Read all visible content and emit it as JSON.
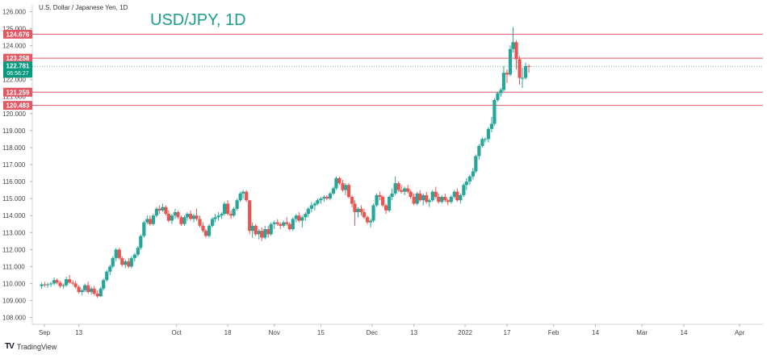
{
  "chart_data": {
    "type": "candlestick",
    "symbol_label": "U.S. Dollar / Japanese Yen, 1D",
    "title": "USD/JPY, 1D",
    "ylim": [
      107.6,
      126.4
    ],
    "y_ticks": [
      "126.000",
      "125.000",
      "124.000",
      "123.000",
      "122.000",
      "121.000",
      "120.000",
      "119.000",
      "118.000",
      "117.000",
      "116.000",
      "115.000",
      "114.000",
      "113.000",
      "112.000",
      "111.000",
      "110.000",
      "109.000",
      "108.000"
    ],
    "x_ticks": [
      {
        "label": "Sep",
        "x": 0.06
      },
      {
        "label": "13",
        "x": 0.8
      },
      {
        "label": "Oct",
        "x": 2.9
      },
      {
        "label": "18",
        "x": 4.0
      },
      {
        "label": "Nov",
        "x": 5.0
      },
      {
        "label": "15",
        "x": 6.0
      },
      {
        "label": "Dec",
        "x": 7.1
      },
      {
        "label": "13",
        "x": 8.0
      },
      {
        "label": "2022",
        "x": 9.1
      },
      {
        "label": "17",
        "x": 10.0
      },
      {
        "label": "Feb",
        "x": 11.0
      },
      {
        "label": "14",
        "x": 11.9
      },
      {
        "label": "Mar",
        "x": 12.9
      },
      {
        "label": "14",
        "x": 13.8
      },
      {
        "label": "Apr",
        "x": 15.0
      }
    ],
    "levels": [
      {
        "value": "124.676",
        "color": "#e05a66"
      },
      {
        "value": "123.258",
        "color": "#e05a66"
      },
      {
        "value": "121.259",
        "color": "#e05a66"
      },
      {
        "value": "120.483",
        "color": "#e05a66"
      }
    ],
    "current_price": {
      "value": "122.781",
      "countdown": "06:56:27",
      "color": "#089981"
    },
    "up_color": "#26a69a",
    "down_color": "#ef5350",
    "x_range": [
      -0.2,
      15.5
    ],
    "candles": [
      [
        0.0,
        109.85,
        110.05,
        109.7,
        109.95
      ],
      [
        0.07,
        109.95,
        110.1,
        109.8,
        109.9
      ],
      [
        0.13,
        109.9,
        110.05,
        109.75,
        109.95
      ],
      [
        0.2,
        109.95,
        110.1,
        109.8,
        110.0
      ],
      [
        0.27,
        110.0,
        110.35,
        109.9,
        110.2
      ],
      [
        0.33,
        110.2,
        110.3,
        109.95,
        110.05
      ],
      [
        0.4,
        110.05,
        110.15,
        109.75,
        109.85
      ],
      [
        0.47,
        109.85,
        110.0,
        109.7,
        109.9
      ],
      [
        0.53,
        109.9,
        110.4,
        109.8,
        110.25
      ],
      [
        0.6,
        110.25,
        110.5,
        110.0,
        110.05
      ],
      [
        0.67,
        110.05,
        110.2,
        109.9,
        110.0
      ],
      [
        0.73,
        110.0,
        110.15,
        109.7,
        109.8
      ],
      [
        0.8,
        109.8,
        109.9,
        109.4,
        109.5
      ],
      [
        0.87,
        109.5,
        109.7,
        109.3,
        109.6
      ],
      [
        0.93,
        109.6,
        110.0,
        109.5,
        109.9
      ],
      [
        1.0,
        109.9,
        110.1,
        109.4,
        109.5
      ],
      [
        1.07,
        109.5,
        109.8,
        109.35,
        109.7
      ],
      [
        1.13,
        109.7,
        109.85,
        109.3,
        109.4
      ],
      [
        1.2,
        109.4,
        109.6,
        109.15,
        109.25
      ],
      [
        1.27,
        109.25,
        109.8,
        109.2,
        109.7
      ],
      [
        1.33,
        109.7,
        110.3,
        109.6,
        110.2
      ],
      [
        1.4,
        110.2,
        110.8,
        110.1,
        110.7
      ],
      [
        1.47,
        110.7,
        111.1,
        110.5,
        111.0
      ],
      [
        1.53,
        111.0,
        111.6,
        110.9,
        111.5
      ],
      [
        1.6,
        111.5,
        112.1,
        111.3,
        112.0
      ],
      [
        1.67,
        112.0,
        112.1,
        111.4,
        111.5
      ],
      [
        1.73,
        111.5,
        111.6,
        111.0,
        111.1
      ],
      [
        1.8,
        111.1,
        111.4,
        110.9,
        111.3
      ],
      [
        1.87,
        111.3,
        111.5,
        110.9,
        111.0
      ],
      [
        1.93,
        111.0,
        111.6,
        110.9,
        111.5
      ],
      [
        2.0,
        111.5,
        111.8,
        111.3,
        111.7
      ],
      [
        2.07,
        111.7,
        112.2,
        111.6,
        112.1
      ],
      [
        2.13,
        112.1,
        112.9,
        112.0,
        112.8
      ],
      [
        2.2,
        112.8,
        113.7,
        112.7,
        113.6
      ],
      [
        2.27,
        113.6,
        114.0,
        113.5,
        113.8
      ],
      [
        2.33,
        113.8,
        114.0,
        113.4,
        113.5
      ],
      [
        2.4,
        113.5,
        114.1,
        113.4,
        114.0
      ],
      [
        2.47,
        114.0,
        114.5,
        113.9,
        114.4
      ],
      [
        2.53,
        114.4,
        114.6,
        114.1,
        114.3
      ],
      [
        2.6,
        114.3,
        114.7,
        114.2,
        114.5
      ],
      [
        2.67,
        114.5,
        114.6,
        114.0,
        114.1
      ],
      [
        2.73,
        114.1,
        114.3,
        113.6,
        113.7
      ],
      [
        2.8,
        113.7,
        114.1,
        113.5,
        114.0
      ],
      [
        2.87,
        114.0,
        114.4,
        113.8,
        114.2
      ],
      [
        2.93,
        114.2,
        114.3,
        113.8,
        113.9
      ],
      [
        3.0,
        113.9,
        114.0,
        113.4,
        113.5
      ],
      [
        3.07,
        113.5,
        114.0,
        113.4,
        113.9
      ],
      [
        3.13,
        113.9,
        114.2,
        113.7,
        114.1
      ],
      [
        3.2,
        114.1,
        114.3,
        113.7,
        113.8
      ],
      [
        3.27,
        113.8,
        114.1,
        113.6,
        114.0
      ],
      [
        3.33,
        114.0,
        114.4,
        113.7,
        113.8
      ],
      [
        3.4,
        113.8,
        114.0,
        113.3,
        113.4
      ],
      [
        3.47,
        113.4,
        113.6,
        113.0,
        113.1
      ],
      [
        3.53,
        113.1,
        113.2,
        112.7,
        112.8
      ],
      [
        3.6,
        112.8,
        113.5,
        112.7,
        113.4
      ],
      [
        3.67,
        113.4,
        113.9,
        113.3,
        113.8
      ],
      [
        3.73,
        113.8,
        114.1,
        113.6,
        113.9
      ],
      [
        3.8,
        113.9,
        114.2,
        113.7,
        114.0
      ],
      [
        3.87,
        114.0,
        114.2,
        113.8,
        114.1
      ],
      [
        3.93,
        114.1,
        114.8,
        114.0,
        114.7
      ],
      [
        4.0,
        114.7,
        114.9,
        114.0,
        114.1
      ],
      [
        4.07,
        114.1,
        114.3,
        113.8,
        114.0
      ],
      [
        4.13,
        114.0,
        114.5,
        113.9,
        114.4
      ],
      [
        4.2,
        114.4,
        115.0,
        114.3,
        114.9
      ],
      [
        4.27,
        114.9,
        115.4,
        114.8,
        115.3
      ],
      [
        4.33,
        115.3,
        115.5,
        115.0,
        115.4
      ],
      [
        4.4,
        115.4,
        115.5,
        114.8,
        114.9
      ],
      [
        4.47,
        114.9,
        114.9,
        112.9,
        113.1
      ],
      [
        4.53,
        113.1,
        113.6,
        112.7,
        113.4
      ],
      [
        4.6,
        113.4,
        113.5,
        112.8,
        112.9
      ],
      [
        4.67,
        112.9,
        113.2,
        112.6,
        113.1
      ],
      [
        4.73,
        113.1,
        113.3,
        112.5,
        112.7
      ],
      [
        4.8,
        112.7,
        113.4,
        112.6,
        113.2
      ],
      [
        4.87,
        113.2,
        113.4,
        112.7,
        112.9
      ],
      [
        4.93,
        112.9,
        113.6,
        112.8,
        113.5
      ],
      [
        5.0,
        113.5,
        113.7,
        113.2,
        113.6
      ],
      [
        5.07,
        113.6,
        113.8,
        113.4,
        113.5
      ],
      [
        5.13,
        113.5,
        113.6,
        113.2,
        113.4
      ],
      [
        5.2,
        113.4,
        113.7,
        113.3,
        113.6
      ],
      [
        5.27,
        113.6,
        113.9,
        113.4,
        113.5
      ],
      [
        5.33,
        113.5,
        113.6,
        113.1,
        113.2
      ],
      [
        5.4,
        113.2,
        113.9,
        113.1,
        113.8
      ],
      [
        5.47,
        113.8,
        114.1,
        113.6,
        114.0
      ],
      [
        5.53,
        114.0,
        114.2,
        113.6,
        113.7
      ],
      [
        5.6,
        113.7,
        114.0,
        113.3,
        113.9
      ],
      [
        5.67,
        113.9,
        114.2,
        113.7,
        114.1
      ],
      [
        5.73,
        114.1,
        114.5,
        113.9,
        114.4
      ],
      [
        5.8,
        114.4,
        114.8,
        114.2,
        114.6
      ],
      [
        5.87,
        114.6,
        114.8,
        114.3,
        114.7
      ],
      [
        5.93,
        114.7,
        115.0,
        114.6,
        114.9
      ],
      [
        6.0,
        114.9,
        115.1,
        114.7,
        115.0
      ],
      [
        6.07,
        115.0,
        115.2,
        114.8,
        115.1
      ],
      [
        6.13,
        115.1,
        115.2,
        114.9,
        115.0
      ],
      [
        6.2,
        115.0,
        115.4,
        114.9,
        115.3
      ],
      [
        6.27,
        115.3,
        115.7,
        115.2,
        115.6
      ],
      [
        6.33,
        115.6,
        116.3,
        115.5,
        116.2
      ],
      [
        6.4,
        116.2,
        116.3,
        115.8,
        115.9
      ],
      [
        6.47,
        115.9,
        116.1,
        115.4,
        115.5
      ],
      [
        6.53,
        115.5,
        115.9,
        115.2,
        115.8
      ],
      [
        6.6,
        115.8,
        115.9,
        115.0,
        115.1
      ],
      [
        6.67,
        115.1,
        115.2,
        114.5,
        114.7
      ],
      [
        6.73,
        114.7,
        114.9,
        113.4,
        114.2
      ],
      [
        6.8,
        114.2,
        114.5,
        113.9,
        114.4
      ],
      [
        6.87,
        114.4,
        114.6,
        114.0,
        114.2
      ],
      [
        6.93,
        114.2,
        114.4,
        113.8,
        113.9
      ],
      [
        7.0,
        113.9,
        114.0,
        113.5,
        113.6
      ],
      [
        7.07,
        113.6,
        113.8,
        113.3,
        113.7
      ],
      [
        7.13,
        113.7,
        114.7,
        113.6,
        114.6
      ],
      [
        7.2,
        114.6,
        115.3,
        114.5,
        115.2
      ],
      [
        7.27,
        115.2,
        115.4,
        114.9,
        115.1
      ],
      [
        7.33,
        115.1,
        115.2,
        114.5,
        114.6
      ],
      [
        7.4,
        114.6,
        114.7,
        114.1,
        114.3
      ],
      [
        7.47,
        114.3,
        115.2,
        114.2,
        115.1
      ],
      [
        7.53,
        115.1,
        115.6,
        114.9,
        115.3
      ],
      [
        7.6,
        115.3,
        116.3,
        115.2,
        115.9
      ],
      [
        7.67,
        115.9,
        116.0,
        115.4,
        115.5
      ],
      [
        7.73,
        115.5,
        115.8,
        115.3,
        115.4
      ],
      [
        7.8,
        115.4,
        115.7,
        115.2,
        115.6
      ],
      [
        7.87,
        115.6,
        115.8,
        115.3,
        115.4
      ],
      [
        7.93,
        115.4,
        115.5,
        115.0,
        115.1
      ],
      [
        8.0,
        115.1,
        115.3,
        114.6,
        114.7
      ],
      [
        8.07,
        114.7,
        115.4,
        114.6,
        115.3
      ],
      [
        8.13,
        115.3,
        115.5,
        114.8,
        114.9
      ],
      [
        8.2,
        114.9,
        115.3,
        114.6,
        115.2
      ],
      [
        8.27,
        115.2,
        115.4,
        114.7,
        114.8
      ],
      [
        8.33,
        114.8,
        115.0,
        114.5,
        114.9
      ],
      [
        8.4,
        114.9,
        115.5,
        114.8,
        115.4
      ],
      [
        8.47,
        115.4,
        115.7,
        115.0,
        115.1
      ],
      [
        8.53,
        115.1,
        115.3,
        114.7,
        114.8
      ],
      [
        8.6,
        114.8,
        115.2,
        114.7,
        115.1
      ],
      [
        8.67,
        115.1,
        115.3,
        114.8,
        114.9
      ],
      [
        8.73,
        114.9,
        115.0,
        114.6,
        114.8
      ],
      [
        8.8,
        114.8,
        115.2,
        114.7,
        115.1
      ],
      [
        8.87,
        115.1,
        115.5,
        115.0,
        115.4
      ],
      [
        8.93,
        115.4,
        115.6,
        114.8,
        114.9
      ],
      [
        9.0,
        114.9,
        115.3,
        114.7,
        115.2
      ],
      [
        9.07,
        115.2,
        115.9,
        115.1,
        115.8
      ],
      [
        9.13,
        115.8,
        116.2,
        115.5,
        116.0
      ],
      [
        9.2,
        116.0,
        116.4,
        115.8,
        116.3
      ],
      [
        9.27,
        116.3,
        116.8,
        116.1,
        116.6
      ],
      [
        9.33,
        116.6,
        117.6,
        116.5,
        117.5
      ],
      [
        9.4,
        117.5,
        118.2,
        117.3,
        118.1
      ],
      [
        9.47,
        118.1,
        118.6,
        118.0,
        118.5
      ],
      [
        9.53,
        118.5,
        118.6,
        118.3,
        118.5
      ],
      [
        9.6,
        118.5,
        119.2,
        118.3,
        119.1
      ],
      [
        9.67,
        119.1,
        119.8,
        118.9,
        119.4
      ],
      [
        9.73,
        119.4,
        120.9,
        119.3,
        120.8
      ],
      [
        9.8,
        120.8,
        121.3,
        120.7,
        121.2
      ],
      [
        9.87,
        121.2,
        121.5,
        121.0,
        121.4
      ],
      [
        9.93,
        121.4,
        122.8,
        121.3,
        122.4
      ],
      [
        10.0,
        122.4,
        122.6,
        121.8,
        122.3
      ],
      [
        10.07,
        122.3,
        124.0,
        122.2,
        123.8
      ],
      [
        10.13,
        123.8,
        125.1,
        123.6,
        124.2
      ],
      [
        10.2,
        124.2,
        124.3,
        122.6,
        123.2
      ],
      [
        10.27,
        123.2,
        123.4,
        121.7,
        122.1
      ],
      [
        10.33,
        122.1,
        122.7,
        121.5,
        122.1
      ],
      [
        10.4,
        122.1,
        123.0,
        122.0,
        122.8
      ],
      [
        10.47,
        122.8,
        122.9,
        122.4,
        122.78
      ]
    ]
  },
  "branding": {
    "name": "TradingView",
    "logo": "TV"
  }
}
